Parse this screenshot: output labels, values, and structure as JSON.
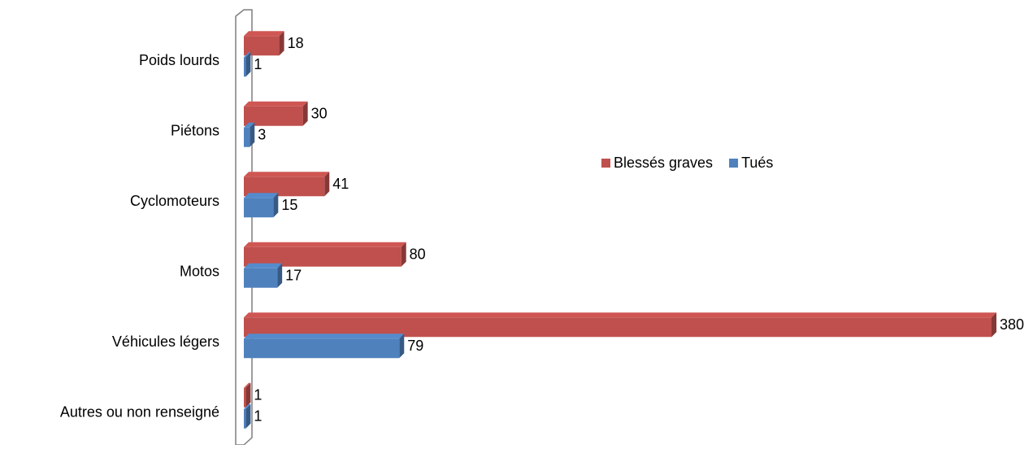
{
  "chart_data": {
    "type": "bar",
    "orientation": "horizontal",
    "categories": [
      "Poids lourds",
      "Piétons",
      "Cyclomoteurs",
      "Motos",
      "Véhicules légers",
      "Autres ou non renseigné"
    ],
    "series": [
      {
        "name": "Blessés graves",
        "color": "#c0504d",
        "values": [
          18,
          30,
          41,
          80,
          380,
          1
        ]
      },
      {
        "name": "Tués",
        "color": "#4f81bd",
        "values": [
          1,
          3,
          15,
          17,
          79,
          1
        ]
      }
    ],
    "xlim": [
      0,
      380
    ],
    "legend": "right"
  }
}
